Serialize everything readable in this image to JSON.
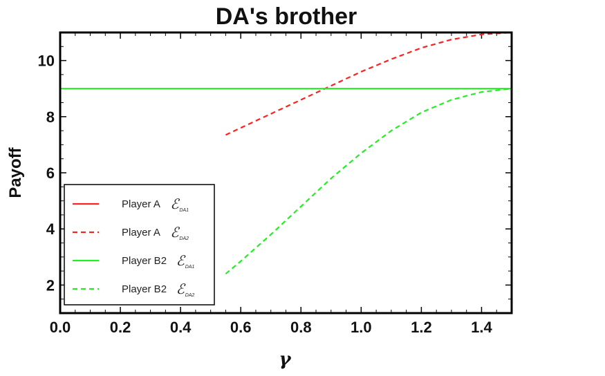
{
  "chart_data": {
    "type": "line",
    "title": "DA's brother",
    "xlabel": "γ",
    "ylabel": "Payoff",
    "xlim": [
      0.0,
      1.5
    ],
    "ylim": [
      1.0,
      11.0
    ],
    "x_ticks": [
      "0.0",
      "0.2",
      "0.4",
      "0.6",
      "0.8",
      "1.0",
      "1.2",
      "1.4"
    ],
    "y_ticks": [
      "2",
      "4",
      "6",
      "8",
      "10"
    ],
    "grid": false,
    "legend_position": "bottom-left",
    "series": [
      {
        "name": "Player A",
        "symbol": "ℰ",
        "subscript": "DA1",
        "color": "#ff2020",
        "dash": "solid",
        "x": [
          0.0,
          1.5
        ],
        "y": [
          11.0,
          11.0
        ]
      },
      {
        "name": "Player A",
        "symbol": "ℰ",
        "subscript": "DA2",
        "color": "#ff2020",
        "dash": "dashed",
        "x": [
          0.55,
          0.6,
          0.7,
          0.8,
          0.9,
          1.0,
          1.1,
          1.2,
          1.3,
          1.4,
          1.5
        ],
        "y": [
          7.35,
          7.6,
          8.1,
          8.6,
          9.1,
          9.6,
          10.05,
          10.45,
          10.75,
          10.93,
          11.0
        ]
      },
      {
        "name": "Player B2",
        "symbol": "ℰ",
        "subscript": "DA1",
        "color": "#22ee22",
        "dash": "solid",
        "x": [
          0.0,
          1.5
        ],
        "y": [
          9.0,
          9.0
        ]
      },
      {
        "name": "Player B2",
        "symbol": "ℰ",
        "subscript": "DA2",
        "color": "#22ee22",
        "dash": "dashed",
        "x": [
          0.55,
          0.6,
          0.7,
          0.8,
          0.9,
          1.0,
          1.1,
          1.2,
          1.3,
          1.4,
          1.5
        ],
        "y": [
          2.4,
          2.85,
          3.8,
          4.8,
          5.8,
          6.7,
          7.5,
          8.15,
          8.6,
          8.88,
          9.0
        ]
      }
    ]
  }
}
